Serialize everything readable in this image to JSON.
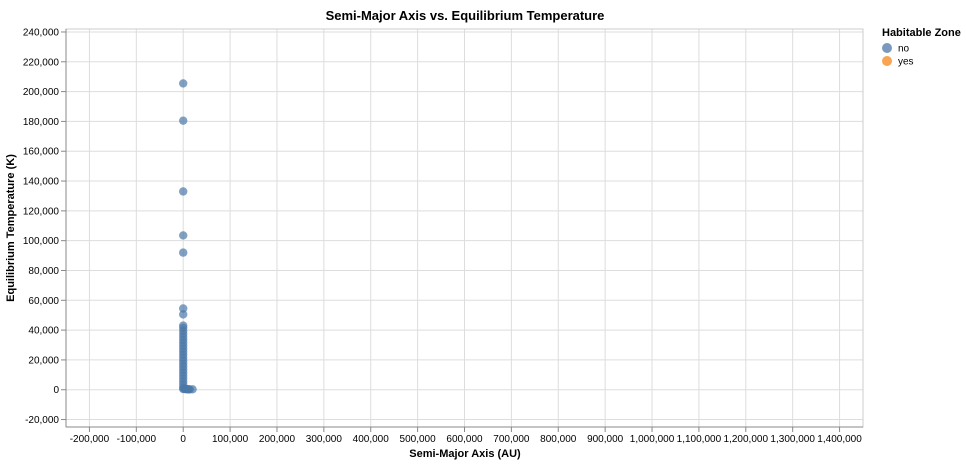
{
  "chart_data": {
    "type": "scatter",
    "title": "Semi-Major Axis vs. Equilibrium Temperature",
    "xlabel": "Semi-Major Axis (AU)",
    "ylabel": "Equilibrium Temperature (K)",
    "xlim": [
      -250000,
      1450000
    ],
    "ylim": [
      -25000,
      242000
    ],
    "x_ticks": [
      -200000,
      -100000,
      0,
      100000,
      200000,
      300000,
      400000,
      500000,
      600000,
      700000,
      800000,
      900000,
      1000000,
      1100000,
      1200000,
      1300000,
      1400000
    ],
    "x_tick_labels": [
      "-200,000",
      "-100,000",
      "0",
      "100,000",
      "200,000",
      "300,000",
      "400,000",
      "500,000",
      "600,000",
      "700,000",
      "800,000",
      "900,000",
      "1,000,000",
      "1,100,000",
      "1,200,000",
      "1,300,000",
      "1,400,000"
    ],
    "y_ticks": [
      -20000,
      0,
      20000,
      40000,
      60000,
      80000,
      100000,
      120000,
      140000,
      160000,
      180000,
      200000,
      220000,
      240000
    ],
    "y_tick_labels": [
      "-20,000",
      "0",
      "20,000",
      "40,000",
      "60,000",
      "80,000",
      "100,000",
      "120,000",
      "140,000",
      "160,000",
      "180,000",
      "200,000",
      "220,000",
      "240,000"
    ],
    "grid": true,
    "legend": {
      "title": "Habitable Zone",
      "placement": "top-right",
      "entries": [
        {
          "label": "no",
          "color": "#4c78a8"
        },
        {
          "label": "yes",
          "color": "#f58518"
        }
      ]
    },
    "series": [
      {
        "name": "no",
        "color": "#4c78a8",
        "points": [
          [
            0,
            205500
          ],
          [
            0,
            180500
          ],
          [
            0,
            133000
          ],
          [
            0,
            103500
          ],
          [
            0,
            92000
          ],
          [
            0,
            54500
          ],
          [
            0,
            50500
          ],
          [
            0,
            43000
          ],
          [
            0,
            41500
          ],
          [
            0,
            39500
          ],
          [
            0,
            37500
          ],
          [
            0,
            35500
          ],
          [
            0,
            33500
          ],
          [
            0,
            31500
          ],
          [
            0,
            29500
          ],
          [
            0,
            27500
          ],
          [
            0,
            25500
          ],
          [
            0,
            23500
          ],
          [
            0,
            21500
          ],
          [
            0,
            19500
          ],
          [
            0,
            17500
          ],
          [
            0,
            15500
          ],
          [
            0,
            13500
          ],
          [
            0,
            11500
          ],
          [
            0,
            9500
          ],
          [
            0,
            7500
          ],
          [
            0,
            5500
          ],
          [
            0,
            3500
          ],
          [
            0,
            1500
          ],
          [
            0,
            500
          ],
          [
            2000,
            600
          ],
          [
            4000,
            500
          ],
          [
            6000,
            400
          ],
          [
            8000,
            400
          ],
          [
            10000,
            300
          ],
          [
            12000,
            300
          ],
          [
            14000,
            200
          ],
          [
            20000,
            300
          ]
        ]
      },
      {
        "name": "yes",
        "color": "#f58518",
        "points": []
      }
    ]
  }
}
